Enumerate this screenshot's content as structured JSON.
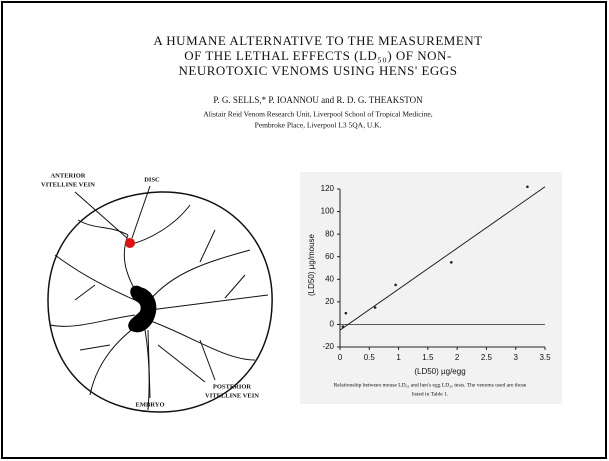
{
  "header": {
    "title_lines": [
      "A HUMANE ALTERNATIVE TO THE MEASUREMENT",
      "OF THE LETHAL EFFECTS (LD₅₀) OF NON-",
      "NEUROTOXIC VENOMS USING HENS' EGGS"
    ],
    "authors": "P. G. SELLS,* P. IOANNOU and R. D. G. THEAKSTON",
    "affiliation": [
      "Alistair Reid Venom Research Unit, Liverpool School of Tropical Medicine,",
      "Pembroke Place, Liverpool L3 5QA, U.K."
    ]
  },
  "diagram": {
    "labels": {
      "anterior": [
        "ANTERIOR",
        "VITELLINE VEIN"
      ],
      "disc": "DISC",
      "embryo": "EMBRYO",
      "posterior": [
        "POSTERIOR",
        "VITELLINE VEIN"
      ]
    }
  },
  "chart_data": {
    "type": "scatter",
    "x_label": "(LD50) µg/egg",
    "y_label": "(LD50) µg/mouse",
    "x": [
      0.05,
      0.1,
      0.6,
      0.95,
      1.9,
      3.2
    ],
    "values": [
      -2,
      10,
      15,
      35,
      55,
      122
    ],
    "color": "#222222",
    "trend_line": {
      "x": [
        0,
        3.5
      ],
      "values": [
        -5,
        122
      ]
    },
    "xlim": [
      0,
      3.5
    ],
    "xticks": [
      0,
      0.5,
      1,
      1.5,
      2,
      2.5,
      3,
      3.5
    ],
    "ylim": [
      -20,
      120
    ],
    "yticks": [
      -20,
      0,
      20,
      40,
      60,
      80,
      100,
      120
    ],
    "grid": false,
    "caption": [
      "Relationship between mouse LD₅₀ and hen's egg LD₅₀ tests. The venoms used are those",
      "listed in Table 1."
    ]
  }
}
